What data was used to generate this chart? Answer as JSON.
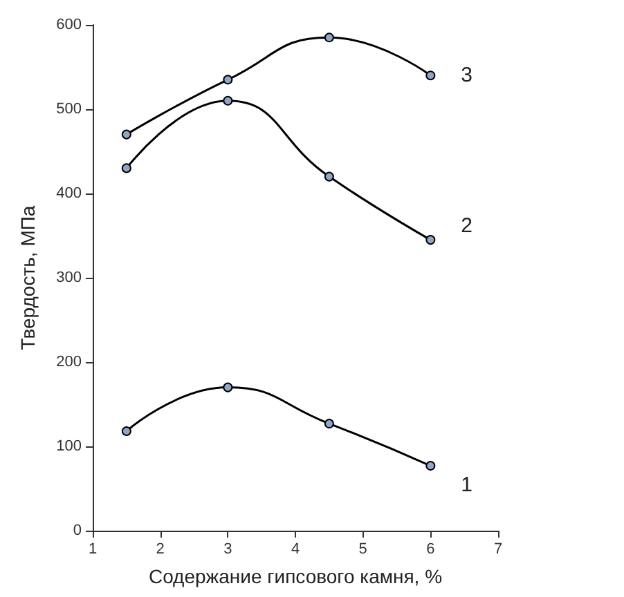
{
  "chart_data": {
    "type": "line",
    "xlabel": "Содержание гипсового камня, %",
    "ylabel": "Твердость, МПа",
    "x": [
      1.5,
      3,
      4.5,
      6
    ],
    "series": [
      {
        "name": "1",
        "color": "#000000",
        "values": [
          118,
          170,
          127,
          77
        ]
      },
      {
        "name": "2",
        "color": "#000000",
        "values": [
          430,
          510,
          420,
          345
        ]
      },
      {
        "name": "3",
        "color": "#000000",
        "values": [
          470,
          535,
          585,
          540
        ]
      }
    ],
    "xlim": [
      1,
      7
    ],
    "xticks": [
      1,
      2,
      3,
      4,
      5,
      6,
      7
    ],
    "ylim": [
      0,
      600
    ],
    "yticks": [
      0,
      100,
      200,
      300,
      400,
      500,
      600
    ],
    "grid": false,
    "legend": false,
    "marker": "circle",
    "line_style": "solid"
  }
}
